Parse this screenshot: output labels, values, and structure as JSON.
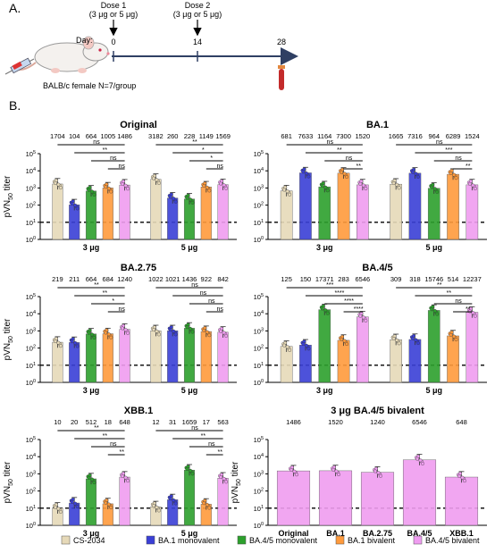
{
  "timeline": {
    "section_label": "A.",
    "day_label": "Day:",
    "days": [
      0,
      14,
      28
    ],
    "dose1_line1": "Dose 1",
    "dose1_line2": "(3 μg or 5 μg)",
    "dose2_line1": "Dose 2",
    "dose2_line2": "(3 μg or 5 μg)",
    "mouse_caption": "BALB/c female N=7/group"
  },
  "section_b_label": "B.",
  "colors": {
    "CS-2034": "#e6d9b8",
    "BA.1 monovalent": "#3a3fd6",
    "BA.4/5 monovalent": "#2ca02c",
    "BA.1 bivalent": "#ff9a3c",
    "BA.4/5 bivalent": "#ef9cf0",
    "threshold": "#000000"
  },
  "legend": [
    "CS-2034",
    "BA.1 monovalent",
    "BA.4/5 monovalent",
    "BA.1 bivalent",
    "BA.4/5 bivalent"
  ],
  "chart_data": [
    {
      "type": "bar",
      "title": "Original",
      "ylabel": "pVN50 titer",
      "yscale": "log",
      "ylim": [
        1,
        100000
      ],
      "groups": [
        "3 μg",
        "5 μg"
      ],
      "series_names": [
        "CS-2034",
        "BA.1 monovalent",
        "BA.4/5 monovalent",
        "BA.1 bivalent",
        "BA.4/5 bivalent"
      ],
      "values": [
        [
          1704,
          104,
          664,
          1005,
          1486
        ],
        [
          3182,
          260,
          228,
          1149,
          1569
        ]
      ],
      "value_labels": [
        [
          "1704",
          "104",
          "664",
          "1005",
          "1486"
        ],
        [
          "3182",
          "260",
          "228",
          "1149",
          "1569"
        ]
      ],
      "threshold": 10,
      "comparisons": [
        [
          "ns",
          "**",
          "ns",
          "ns"
        ],
        [
          "**",
          "*",
          "*",
          "ns"
        ]
      ]
    },
    {
      "type": "bar",
      "title": "BA.1",
      "ylabel": "",
      "yscale": "log",
      "ylim": [
        1,
        100000
      ],
      "groups": [
        "3 μg",
        "5 μg"
      ],
      "series_names": [
        "CS-2034",
        "BA.1 monovalent",
        "BA.4/5 monovalent",
        "BA.1 bivalent",
        "BA.4/5 bivalent"
      ],
      "values": [
        [
          681,
          7633,
          1164,
          7300,
          1520
        ],
        [
          1665,
          7316,
          964,
          6289,
          1524
        ]
      ],
      "value_labels": [
        [
          "681",
          "7633",
          "1164",
          "7300",
          "1520"
        ],
        [
          "1665",
          "7316",
          "964",
          "6289",
          "1524"
        ]
      ],
      "threshold": 10,
      "comparisons": [
        [
          "ns",
          "**",
          "ns",
          "**"
        ],
        [
          "ns",
          "***",
          "ns",
          "**"
        ]
      ]
    },
    {
      "type": "bar",
      "title": "BA.2.75",
      "ylabel": "pVN50 titer",
      "yscale": "log",
      "ylim": [
        1,
        100000
      ],
      "groups": [
        "3 μg",
        "5 μg"
      ],
      "series_names": [
        "CS-2034",
        "BA.1 monovalent",
        "BA.4/5 monovalent",
        "BA.1 bivalent",
        "BA.4/5 bivalent"
      ],
      "values": [
        [
          219,
          211,
          664,
          684,
          1240
        ],
        [
          1022,
          1021,
          1436,
          922,
          842
        ]
      ],
      "value_labels": [
        [
          "219",
          "211",
          "664",
          "684",
          "1240"
        ],
        [
          "1022",
          "1021",
          "1436",
          "922",
          "842"
        ]
      ],
      "threshold": 10,
      "comparisons": [
        [
          "**",
          "**",
          "*",
          "ns"
        ],
        [
          "ns",
          "ns",
          "ns",
          "ns"
        ]
      ]
    },
    {
      "type": "bar",
      "title": "BA.4/5",
      "ylabel": "",
      "yscale": "log",
      "ylim": [
        1,
        100000
      ],
      "groups": [
        "3 μg",
        "5 μg"
      ],
      "series_names": [
        "CS-2034",
        "BA.1 monovalent",
        "BA.4/5 monovalent",
        "BA.1 bivalent",
        "BA.4/5 bivalent"
      ],
      "values": [
        [
          125,
          150,
          17371,
          283,
          6546
        ],
        [
          309,
          318,
          15746,
          514,
          12237
        ]
      ],
      "value_labels": [
        [
          "125",
          "150",
          "17371",
          "283",
          "6546"
        ],
        [
          "309",
          "318",
          "15746",
          "514",
          "12237"
        ]
      ],
      "threshold": 10,
      "comparisons": [
        [
          "***",
          "****",
          "****",
          "****"
        ],
        [
          "**",
          "**",
          "ns",
          "**"
        ]
      ]
    },
    {
      "type": "bar",
      "title": "XBB.1",
      "ylabel": "pVN50 titer",
      "yscale": "log",
      "ylim": [
        1,
        100000
      ],
      "groups": [
        "3 μg",
        "5 μg"
      ],
      "series_names": [
        "CS-2034",
        "BA.1 monovalent",
        "BA.4/5 monovalent",
        "BA.1 bivalent",
        "BA.4/5 bivalent"
      ],
      "values": [
        [
          10,
          20,
          512,
          18,
          648
        ],
        [
          12,
          31,
          1659,
          17,
          563
        ]
      ],
      "value_labels": [
        [
          "10",
          "20",
          "512",
          "18",
          "648"
        ],
        [
          "12",
          "31",
          "1659",
          "17",
          "563"
        ]
      ],
      "threshold": 10,
      "comparisons": [
        [
          "**",
          "**",
          "ns",
          "**"
        ],
        [
          "ns",
          "**",
          "ns",
          "**"
        ]
      ]
    },
    {
      "type": "bar",
      "title": "3 μg BA.4/5 bivalent",
      "ylabel": "pVN50 titer",
      "yscale": "log",
      "ylim": [
        1,
        100000
      ],
      "categories": [
        "Original",
        "BA.1",
        "BA.2.75",
        "BA.4/5",
        "XBB.1"
      ],
      "values": [
        1486,
        1520,
        1240,
        6546,
        648
      ],
      "value_labels": [
        "1486",
        "1520",
        "1240",
        "6546",
        "648"
      ],
      "threshold": 10
    }
  ]
}
